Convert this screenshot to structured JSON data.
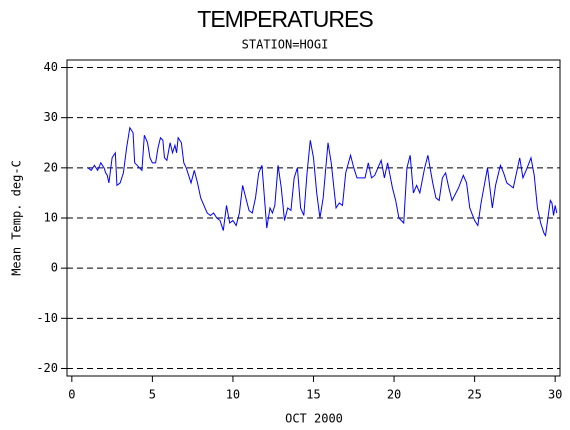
{
  "chart_data": {
    "type": "line",
    "title": "TEMPERATURES",
    "subtitle": "STATION=HOGI",
    "x_label": "OCT 2000",
    "y_label": "Mean Temp. deg-C",
    "xlim": [
      -0.3,
      30.3
    ],
    "xticks": [
      0,
      5,
      10,
      15,
      20,
      25,
      30
    ],
    "ylim": [
      -21.5,
      41.5
    ],
    "yticks": [
      -20,
      -10,
      0,
      10,
      20,
      30,
      40
    ],
    "grid": true,
    "series": [
      {
        "color": "#0000ff",
        "x": [
          1.0,
          1.2,
          1.4,
          1.6,
          1.8,
          2.0,
          2.1,
          2.2,
          2.3,
          2.5,
          2.7,
          2.8,
          3.0,
          3.1,
          3.2,
          3.4,
          3.6,
          3.8,
          3.9,
          4.2,
          4.35,
          4.5,
          4.7,
          4.85,
          5.0,
          5.2,
          5.35,
          5.5,
          5.65,
          5.75,
          5.9,
          6.1,
          6.25,
          6.4,
          6.5,
          6.6,
          6.8,
          6.95,
          7.1,
          7.4,
          7.6,
          7.8,
          8.0,
          8.2,
          8.4,
          8.6,
          8.8,
          9.0,
          9.2,
          9.4,
          9.6,
          9.8,
          10.0,
          10.2,
          10.4,
          10.6,
          10.8,
          11.0,
          11.2,
          11.4,
          11.6,
          11.8,
          12.1,
          12.3,
          12.45,
          12.6,
          12.8,
          13.0,
          13.2,
          13.4,
          13.6,
          13.8,
          14.0,
          14.2,
          14.4,
          14.6,
          14.8,
          15.0,
          15.2,
          15.4,
          15.6,
          15.9,
          16.1,
          16.4,
          16.6,
          16.8,
          17.0,
          17.3,
          17.5,
          17.7,
          18.0,
          18.2,
          18.4,
          18.6,
          18.8,
          19.0,
          19.2,
          19.4,
          19.6,
          19.9,
          20.1,
          20.3,
          20.6,
          20.8,
          21.0,
          21.2,
          21.4,
          21.6,
          21.9,
          22.1,
          22.4,
          22.6,
          22.8,
          23.0,
          23.2,
          23.4,
          23.6,
          24.0,
          24.3,
          24.5,
          24.7,
          25.0,
          25.2,
          25.4,
          25.8,
          25.95,
          26.1,
          26.3,
          26.6,
          26.8,
          27.0,
          27.2,
          27.4,
          27.8,
          28.0,
          28.2,
          28.5,
          28.7,
          28.9,
          29.1,
          29.3,
          29.4,
          29.55,
          29.7,
          29.8,
          29.9,
          30.0,
          30.1
        ],
        "values": [
          20,
          19.5,
          20.5,
          19.5,
          21,
          20,
          19,
          18.5,
          17,
          22,
          23,
          16.5,
          17,
          18,
          19,
          24,
          28,
          27,
          21,
          20,
          19.5,
          26.5,
          25,
          22,
          21,
          21,
          24,
          26,
          25.5,
          22,
          21.5,
          25,
          23,
          24.5,
          23,
          26,
          25,
          21,
          20,
          17,
          19.5,
          17,
          14,
          12.5,
          11,
          10.5,
          11,
          10,
          9.5,
          7.5,
          12.5,
          9,
          9.5,
          8.5,
          11,
          16.5,
          14,
          11.5,
          11,
          14,
          19,
          20.5,
          8,
          12,
          11,
          12.5,
          20.5,
          16,
          9.5,
          12,
          11.5,
          18,
          20,
          12,
          10.5,
          19,
          25.5,
          22,
          15,
          10,
          14,
          25,
          21,
          12,
          13,
          12.5,
          19,
          22.5,
          20,
          18,
          18,
          18,
          21,
          18,
          18.5,
          20,
          21.5,
          18,
          21,
          16,
          13.5,
          10,
          9,
          20,
          22.5,
          15,
          16.5,
          15,
          20,
          22.5,
          17,
          14,
          13.5,
          18,
          19,
          16,
          13.5,
          16,
          18.5,
          17,
          12,
          9.5,
          8.5,
          13,
          20,
          16,
          12,
          16.5,
          20.5,
          19,
          17,
          16.5,
          16,
          22,
          18,
          19.5,
          22,
          18.5,
          12,
          9,
          7,
          6.5,
          10,
          13.5,
          13,
          10.5,
          12.5,
          11
        ]
      }
    ]
  }
}
